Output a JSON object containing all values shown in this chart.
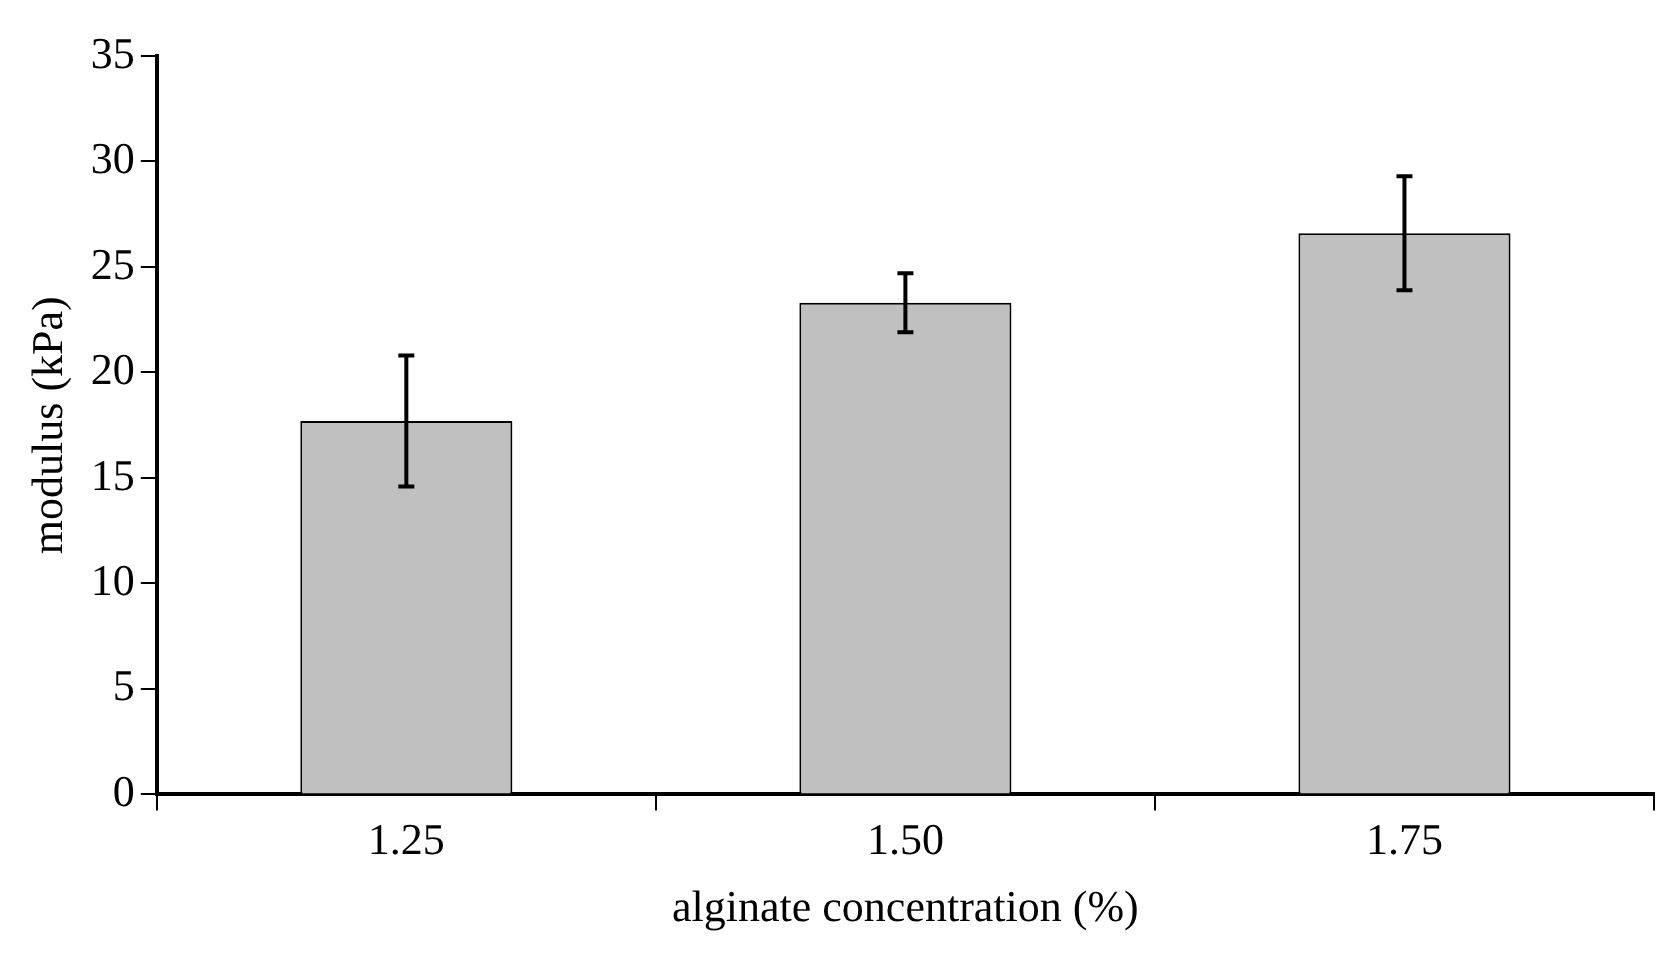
{
  "chart_data": {
    "type": "bar",
    "xlabel": "alginate concentration (%)",
    "ylabel": "modulus (kPa)",
    "categories": [
      "1.25",
      "1.50",
      "1.75"
    ],
    "values": [
      17.7,
      23.3,
      26.6
    ],
    "errors": [
      3.1,
      1.4,
      2.7
    ],
    "color": "#c0c0c0",
    "ylim": [
      0,
      35
    ],
    "yticks": [
      0,
      5,
      10,
      15,
      20,
      25,
      30,
      35
    ],
    "grid": false,
    "legend": false
  }
}
